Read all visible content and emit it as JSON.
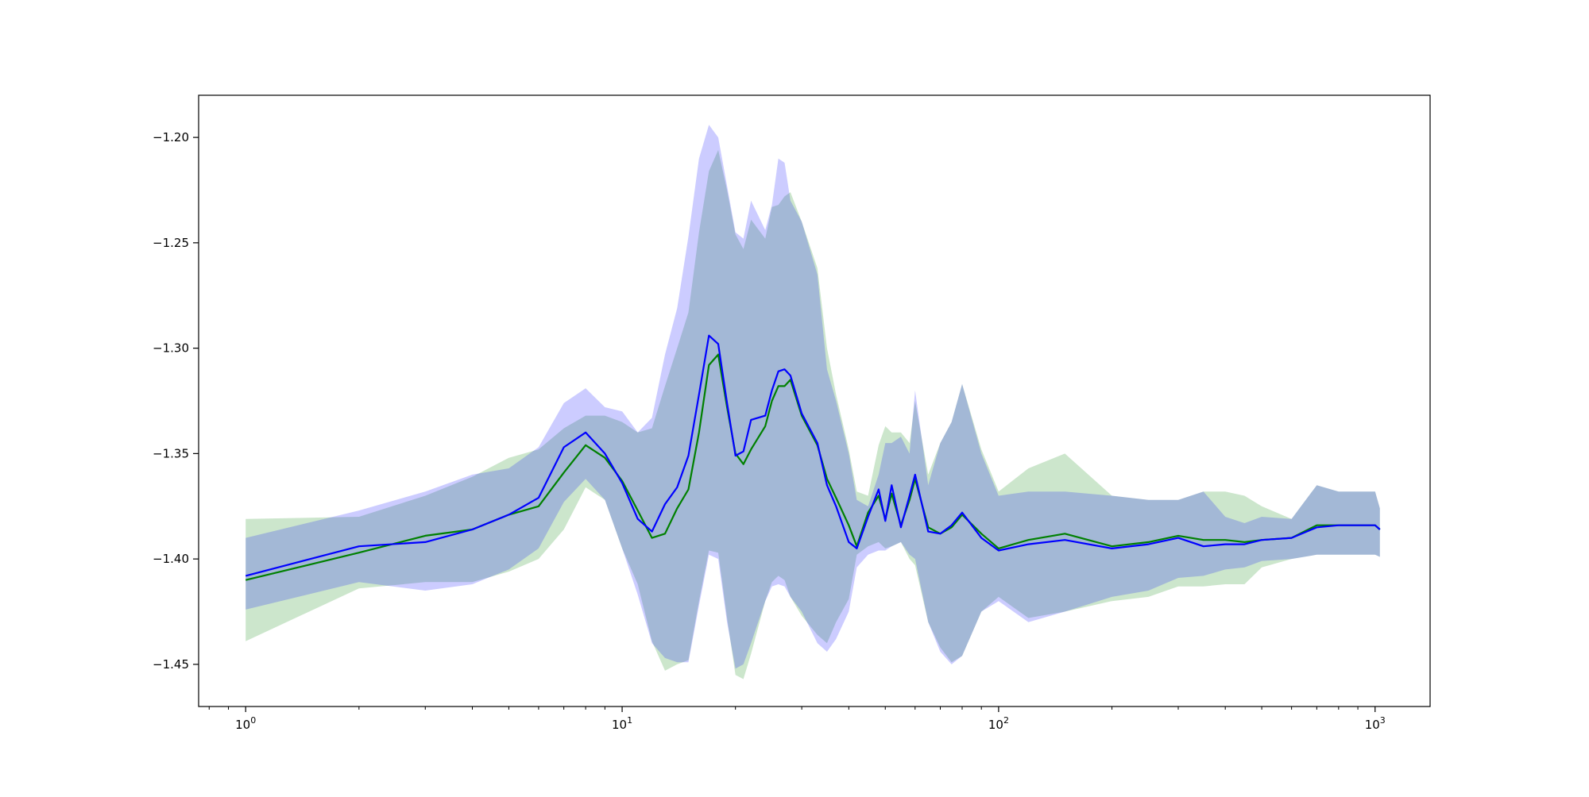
{
  "chart_data": {
    "type": "line",
    "title": "",
    "xlabel": "",
    "ylabel": "",
    "xscale": "log",
    "xlim": [
      0.75,
      1400
    ],
    "ylim": [
      -1.47,
      -1.18
    ],
    "grid": false,
    "x_ticks": [
      {
        "value": 1,
        "base": "10",
        "exp": "0"
      },
      {
        "value": 10,
        "base": "10",
        "exp": "1"
      },
      {
        "value": 100,
        "base": "10",
        "exp": "2"
      },
      {
        "value": 1000,
        "base": "10",
        "exp": "3"
      }
    ],
    "y_ticks": [
      {
        "value": -1.45,
        "label": "−1.45"
      },
      {
        "value": -1.4,
        "label": "−1.40"
      },
      {
        "value": -1.35,
        "label": "−1.35"
      },
      {
        "value": -1.3,
        "label": "−1.30"
      },
      {
        "value": -1.25,
        "label": "−1.25"
      },
      {
        "value": -1.2,
        "label": "−1.20"
      }
    ],
    "series": [
      {
        "color": "#008000",
        "band_color": "#008000",
        "band_opacity": 0.2,
        "x": [
          1,
          2,
          3,
          4,
          5,
          6,
          7,
          8,
          9,
          10,
          11,
          12,
          13,
          14,
          15,
          16,
          17,
          18,
          19,
          20,
          21,
          22,
          24,
          25,
          26,
          27,
          28,
          30,
          33,
          35,
          37,
          40,
          42,
          45,
          48,
          50,
          52,
          55,
          58,
          60,
          65,
          70,
          75,
          80,
          90,
          100,
          120,
          150,
          200,
          250,
          300,
          350,
          400,
          450,
          500,
          600,
          700,
          800,
          900,
          1000,
          1030
        ],
        "y": [
          -1.41,
          -1.397,
          -1.389,
          -1.386,
          -1.379,
          -1.375,
          -1.359,
          -1.346,
          -1.352,
          -1.363,
          -1.377,
          -1.39,
          -1.388,
          -1.376,
          -1.367,
          -1.34,
          -1.308,
          -1.303,
          -1.328,
          -1.35,
          -1.355,
          -1.348,
          -1.337,
          -1.325,
          -1.318,
          -1.318,
          -1.315,
          -1.332,
          -1.346,
          -1.362,
          -1.371,
          -1.384,
          -1.394,
          -1.378,
          -1.37,
          -1.381,
          -1.369,
          -1.384,
          -1.372,
          -1.362,
          -1.385,
          -1.388,
          -1.385,
          -1.379,
          -1.388,
          -1.395,
          -1.391,
          -1.388,
          -1.394,
          -1.392,
          -1.389,
          -1.391,
          -1.391,
          -1.392,
          -1.391,
          -1.39,
          -1.384,
          -1.384,
          -1.384,
          -1.384,
          -1.386
        ],
        "upper": [
          -1.381,
          -1.38,
          -1.37,
          -1.361,
          -1.352,
          -1.348,
          -1.338,
          -1.332,
          -1.332,
          -1.335,
          -1.34,
          -1.338,
          -1.318,
          -1.3,
          -1.283,
          -1.245,
          -1.216,
          -1.206,
          -1.225,
          -1.246,
          -1.253,
          -1.239,
          -1.248,
          -1.233,
          -1.232,
          -1.228,
          -1.226,
          -1.24,
          -1.262,
          -1.3,
          -1.322,
          -1.348,
          -1.368,
          -1.37,
          -1.346,
          -1.337,
          -1.34,
          -1.34,
          -1.345,
          -1.325,
          -1.36,
          -1.345,
          -1.335,
          -1.317,
          -1.348,
          -1.368,
          -1.357,
          -1.35,
          -1.37,
          -1.372,
          -1.372,
          -1.368,
          -1.368,
          -1.37,
          -1.375,
          -1.381,
          -1.365,
          -1.368,
          -1.368,
          -1.368,
          -1.376
        ],
        "lower": [
          -1.439,
          -1.414,
          -1.411,
          -1.411,
          -1.406,
          -1.4,
          -1.386,
          -1.366,
          -1.372,
          -1.395,
          -1.412,
          -1.439,
          -1.453,
          -1.45,
          -1.448,
          -1.42,
          -1.396,
          -1.397,
          -1.428,
          -1.455,
          -1.457,
          -1.445,
          -1.42,
          -1.411,
          -1.408,
          -1.41,
          -1.418,
          -1.427,
          -1.436,
          -1.44,
          -1.43,
          -1.419,
          -1.398,
          -1.394,
          -1.392,
          -1.395,
          -1.394,
          -1.392,
          -1.4,
          -1.403,
          -1.43,
          -1.442,
          -1.449,
          -1.446,
          -1.425,
          -1.418,
          -1.428,
          -1.425,
          -1.42,
          -1.418,
          -1.413,
          -1.413,
          -1.412,
          -1.412,
          -1.404,
          -1.4,
          -1.398,
          -1.398,
          -1.398,
          -1.398,
          -1.399
        ]
      },
      {
        "color": "#0000ff",
        "band_color": "#0000ff",
        "band_opacity": 0.2,
        "x": [
          1,
          2,
          3,
          4,
          5,
          6,
          7,
          8,
          9,
          10,
          11,
          12,
          13,
          14,
          15,
          16,
          17,
          18,
          19,
          20,
          21,
          22,
          24,
          25,
          26,
          27,
          28,
          30,
          33,
          35,
          37,
          40,
          42,
          45,
          48,
          50,
          52,
          55,
          58,
          60,
          65,
          70,
          75,
          80,
          90,
          100,
          120,
          150,
          200,
          250,
          300,
          350,
          400,
          450,
          500,
          600,
          700,
          800,
          900,
          1000,
          1030
        ],
        "y": [
          -1.408,
          -1.394,
          -1.392,
          -1.386,
          -1.379,
          -1.371,
          -1.347,
          -1.34,
          -1.35,
          -1.364,
          -1.381,
          -1.387,
          -1.374,
          -1.366,
          -1.351,
          -1.322,
          -1.294,
          -1.298,
          -1.326,
          -1.351,
          -1.349,
          -1.334,
          -1.332,
          -1.32,
          -1.311,
          -1.31,
          -1.313,
          -1.331,
          -1.345,
          -1.365,
          -1.375,
          -1.392,
          -1.395,
          -1.38,
          -1.367,
          -1.382,
          -1.365,
          -1.385,
          -1.37,
          -1.36,
          -1.387,
          -1.388,
          -1.384,
          -1.378,
          -1.39,
          -1.396,
          -1.393,
          -1.391,
          -1.395,
          -1.393,
          -1.39,
          -1.394,
          -1.393,
          -1.393,
          -1.391,
          -1.39,
          -1.385,
          -1.384,
          -1.384,
          -1.384,
          -1.386
        ],
        "upper": [
          -1.39,
          -1.377,
          -1.368,
          -1.36,
          -1.357,
          -1.347,
          -1.326,
          -1.319,
          -1.328,
          -1.33,
          -1.34,
          -1.333,
          -1.303,
          -1.281,
          -1.247,
          -1.21,
          -1.194,
          -1.2,
          -1.223,
          -1.245,
          -1.248,
          -1.23,
          -1.244,
          -1.232,
          -1.21,
          -1.212,
          -1.23,
          -1.24,
          -1.265,
          -1.31,
          -1.325,
          -1.35,
          -1.372,
          -1.375,
          -1.36,
          -1.345,
          -1.345,
          -1.342,
          -1.35,
          -1.32,
          -1.365,
          -1.345,
          -1.335,
          -1.317,
          -1.35,
          -1.37,
          -1.368,
          -1.368,
          -1.37,
          -1.372,
          -1.372,
          -1.368,
          -1.38,
          -1.383,
          -1.38,
          -1.381,
          -1.365,
          -1.368,
          -1.368,
          -1.368,
          -1.376
        ],
        "lower": [
          -1.424,
          -1.411,
          -1.415,
          -1.412,
          -1.405,
          -1.395,
          -1.373,
          -1.362,
          -1.372,
          -1.395,
          -1.417,
          -1.44,
          -1.447,
          -1.449,
          -1.449,
          -1.422,
          -1.398,
          -1.4,
          -1.43,
          -1.452,
          -1.45,
          -1.44,
          -1.42,
          -1.413,
          -1.412,
          -1.413,
          -1.418,
          -1.425,
          -1.44,
          -1.444,
          -1.438,
          -1.425,
          -1.404,
          -1.398,
          -1.396,
          -1.396,
          -1.394,
          -1.392,
          -1.398,
          -1.4,
          -1.43,
          -1.444,
          -1.45,
          -1.446,
          -1.425,
          -1.42,
          -1.43,
          -1.425,
          -1.418,
          -1.415,
          -1.409,
          -1.408,
          -1.405,
          -1.404,
          -1.401,
          -1.4,
          -1.398,
          -1.398,
          -1.398,
          -1.398,
          -1.399
        ]
      }
    ]
  }
}
